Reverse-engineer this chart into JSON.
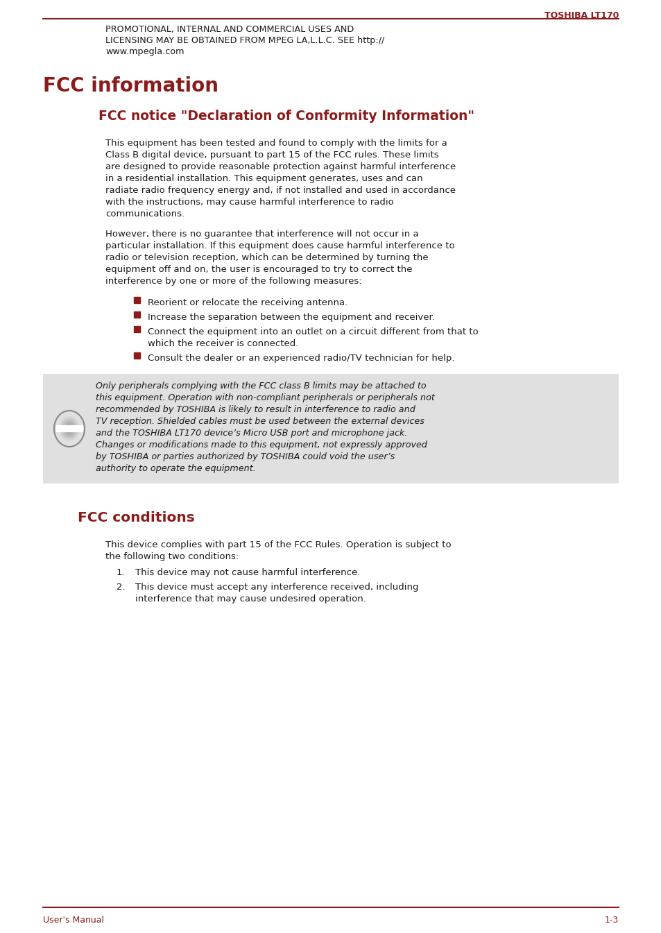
{
  "bg_color": "#ffffff",
  "header_line_color": "#8B1A1A",
  "header_text": "TOSHIBA LT170",
  "header_text_color": "#8B1A1A",
  "footer_line_color": "#8B1A1A",
  "footer_left": "User's Manual",
  "footer_right": "1-3",
  "footer_color": "#8B1A1A",
  "top_body_text_line1": "PROMOTIONAL, INTERNAL AND COMMERCIAL USES AND",
  "top_body_text_line2": "LICENSING MAY BE OBTAINED FROM MPEG LA,L.L.C. SEE http://",
  "top_body_text_line3": "www.mpegla.com",
  "section1_title": "FCC information",
  "section1_title_color": "#8B1A1A",
  "subsection1_title": "FCC notice \"Declaration of Conformity Information\"",
  "subsection1_title_color": "#8B1A1A",
  "para1_lines": [
    "This equipment has been tested and found to comply with the limits for a",
    "Class B digital device, pursuant to part 15 of the FCC rules. These limits",
    "are designed to provide reasonable protection against harmful interference",
    "in a residential installation. This equipment generates, uses and can",
    "radiate radio frequency energy and, if not installed and used in accordance",
    "with the instructions, may cause harmful interference to radio",
    "communications."
  ],
  "para2_lines": [
    "However, there is no guarantee that interference will not occur in a",
    "particular installation. If this equipment does cause harmful interference to",
    "radio or television reception, which can be determined by turning the",
    "equipment off and on, the user is encouraged to try to correct the",
    "interference by one or more of the following measures:"
  ],
  "bullet1": "Reorient or relocate the receiving antenna.",
  "bullet2": "Increase the separation between the equipment and receiver.",
  "bullet3_lines": [
    "Connect the equipment into an outlet on a circuit different from that to",
    "which the receiver is connected."
  ],
  "bullet4": "Consult the dealer or an experienced radio/TV technician for help.",
  "note_lines": [
    "Only peripherals complying with the FCC class B limits may be attached to",
    "this equipment. Operation with non-compliant peripherals or peripherals not",
    "recommended by TOSHIBA is likely to result in interference to radio and",
    "TV reception. Shielded cables must be used between the external devices",
    "and the TOSHIBA LT170 device’s Micro USB port and microphone jack.",
    "Changes or modifications made to this equipment, not expressly approved",
    "by TOSHIBA or parties authorized by TOSHIBA could void the user’s",
    "authority to operate the equipment."
  ],
  "note_bg": "#E0E0E0",
  "section2_title": "FCC conditions",
  "section2_title_color": "#8B1A1A",
  "section2_para_lines": [
    "This device complies with part 15 of the FCC Rules. Operation is subject to",
    "the following two conditions:"
  ],
  "cond1": "This device may not cause harmful interference.",
  "cond2_lines": [
    "This device must accept any interference received, including",
    "interference that may cause undesired operation."
  ],
  "body_color": "#1a1a1a",
  "bullet_color": "#8B1A1A"
}
